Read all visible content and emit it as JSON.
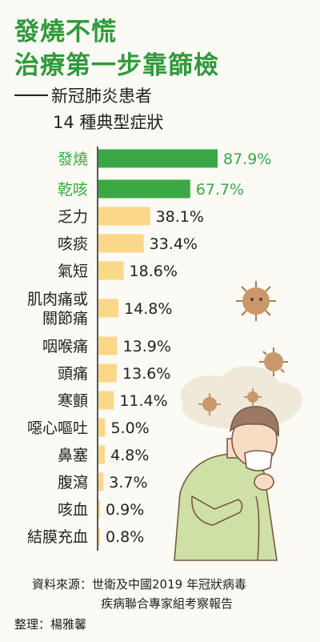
{
  "header": {
    "title_line1": "發燒不慌",
    "title_line2": "治療第一步靠篩檢",
    "subtitle_line1": "新冠肺炎患者",
    "subtitle_line2": "14 種典型症狀"
  },
  "chart_data": {
    "type": "bar",
    "orientation": "horizontal",
    "categories": [
      "發燒",
      "乾咳",
      "乏力",
      "咳痰",
      "氣短",
      "肌肉痛或\n關節痛",
      "咽喉痛",
      "頭痛",
      "寒顫",
      "噁心嘔吐",
      "鼻塞",
      "腹瀉",
      "咳血",
      "結膜充血"
    ],
    "values": [
      87.9,
      67.7,
      38.1,
      33.4,
      18.6,
      14.8,
      13.9,
      13.6,
      11.4,
      5.0,
      4.8,
      3.7,
      0.9,
      0.8
    ],
    "value_labels": [
      "87.9%",
      "67.7%",
      "38.1%",
      "33.4%",
      "18.6%",
      "14.8%",
      "13.9%",
      "13.6%",
      "11.4%",
      "5.0%",
      "4.8%",
      "3.7%",
      "0.9%",
      "0.8%"
    ],
    "highlight_count": 2,
    "xlim": [
      0,
      100
    ],
    "grid": false,
    "colors": {
      "highlight": "#3aa845",
      "normal": "#fbd78a",
      "axis": "#222222"
    }
  },
  "footer": {
    "source_line1": "資料來源：世衛及中國2019 年冠狀病毒",
    "source_line2": "疾病聯合專家組考察報告",
    "editor": "整理：楊雅馨"
  },
  "illustration": {
    "subject": "person-coughing-icon",
    "virus": "virus-icon",
    "cloud": "cloud-icon"
  }
}
